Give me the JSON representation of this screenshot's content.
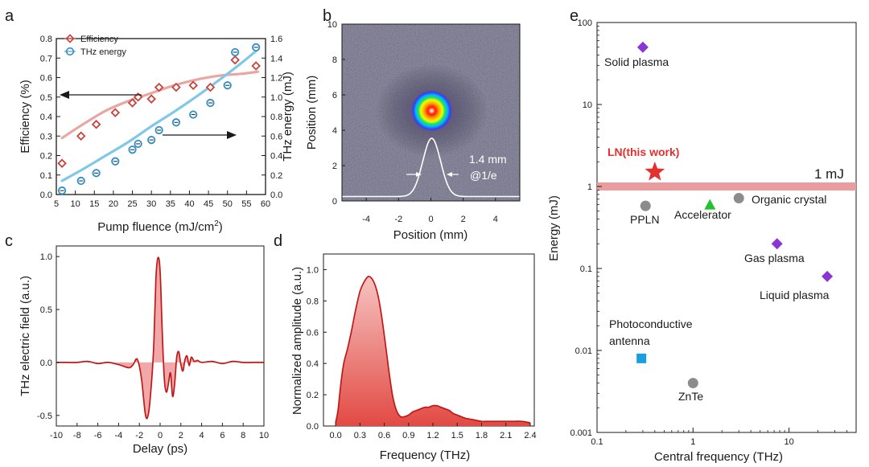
{
  "panels": {
    "a": {
      "label": "a",
      "chart_data": {
        "type": "scatter",
        "xlabel": "Pump fluence (mJ/cm",
        "xlabel_sup": "2",
        "xlabel_end": ")",
        "ylabel_left": "Efficiency (%)",
        "ylabel_right": "THz energy (mJ)",
        "xlim": [
          5,
          60
        ],
        "ylim_left": [
          0,
          0.8
        ],
        "ylim_right": [
          0,
          1.6
        ],
        "xticks": [
          "5",
          "10",
          "15",
          "20",
          "25",
          "30",
          "35",
          "40",
          "45",
          "50",
          "55",
          "60"
        ],
        "yticks_left": [
          "0.0",
          "0.1",
          "0.2",
          "0.3",
          "0.4",
          "0.5",
          "0.6",
          "0.7",
          "0.8"
        ],
        "yticks_right": [
          "0.0",
          "0.2",
          "0.4",
          "0.6",
          "0.8",
          "1.0",
          "1.2",
          "1.4",
          "1.6"
        ],
        "series": [
          {
            "name": "Efficiency",
            "axis": "left",
            "color": "#c8423c",
            "x": [
              6.5,
              11.5,
              15.5,
              20.5,
              25,
              26.5,
              30,
              32,
              36.5,
              41,
              45.5,
              52,
              57.5
            ],
            "y": [
              0.16,
              0.3,
              0.36,
              0.42,
              0.47,
              0.5,
              0.49,
              0.55,
              0.55,
              0.56,
              0.55,
              0.69,
              0.66
            ]
          },
          {
            "name": "THz energy",
            "axis": "right",
            "color": "#2f8fc4",
            "x": [
              6.5,
              11.5,
              15.5,
              20.5,
              25,
              26.5,
              30,
              32,
              36.5,
              41,
              45.5,
              50,
              52,
              57.5
            ],
            "y": [
              0.04,
              0.14,
              0.22,
              0.34,
              0.46,
              0.52,
              0.56,
              0.66,
              0.74,
              0.82,
              0.94,
              1.12,
              1.46,
              1.51
            ]
          }
        ],
        "fits": [
          {
            "name": "efficiency-fit",
            "axis": "left",
            "color": "#eaa7a2",
            "x": [
              6.5,
              12,
              18,
              24,
              30,
              36,
              42,
              48,
              54,
              58
            ],
            "y": [
              0.29,
              0.36,
              0.43,
              0.48,
              0.52,
              0.56,
              0.59,
              0.61,
              0.62,
              0.63
            ]
          },
          {
            "name": "energy-fit",
            "axis": "right",
            "color": "#80c8e6",
            "x": [
              6.5,
              12,
              18,
              24,
              30,
              36,
              42,
              48,
              54,
              58
            ],
            "y": [
              0.14,
              0.26,
              0.4,
              0.54,
              0.7,
              0.85,
              1.01,
              1.18,
              1.36,
              1.49
            ]
          }
        ]
      }
    },
    "b": {
      "label": "b",
      "chart_data": {
        "type": "heatmap",
        "xlabel": "Position (mm)",
        "ylabel": "Position (mm)",
        "xlim": [
          -5.5,
          5.5
        ],
        "ylim": [
          0,
          10
        ],
        "xticks": [
          "-4",
          "-2",
          "0",
          "2",
          "4"
        ],
        "yticks": [
          "0",
          "2",
          "4",
          "6",
          "8",
          "10"
        ],
        "beam_center": [
          0.05,
          5.1
        ],
        "profile_peak_mm": 3.55,
        "annotation_width": "1.4 mm",
        "annotation_level": "@1/e"
      }
    },
    "c": {
      "label": "c",
      "chart_data": {
        "type": "area",
        "xlabel": "Delay (ps)",
        "ylabel": "THz electric field (a.u.)",
        "xlim": [
          -10,
          10
        ],
        "ylim": [
          -0.6,
          1.1
        ],
        "xticks": [
          "-10",
          "-8",
          "-6",
          "-4",
          "-2",
          "0",
          "2",
          "4",
          "6",
          "8",
          "10"
        ],
        "yticks": [
          "-0.5",
          "0.0",
          "0.5",
          "1.0"
        ],
        "x": [
          -10,
          -9,
          -8,
          -7,
          -6,
          -5,
          -4,
          -3,
          -2.6,
          -2.2,
          -1.8,
          -1.4,
          -1.1,
          -0.8,
          -0.6,
          -0.4,
          -0.2,
          0,
          0.2,
          0.4,
          0.6,
          0.8,
          1.0,
          1.2,
          1.4,
          1.6,
          1.8,
          2.0,
          2.2,
          2.4,
          2.6,
          2.8,
          3.0,
          3.3,
          3.6,
          4,
          5,
          6,
          7,
          8,
          9,
          10
        ],
        "y": [
          0,
          0,
          0,
          0.01,
          -0.01,
          0,
          -0.02,
          -0.05,
          -0.02,
          0.03,
          -0.15,
          -0.5,
          -0.47,
          -0.15,
          0.2,
          0.8,
          0.99,
          0.86,
          0.3,
          -0.15,
          -0.28,
          -0.2,
          -0.1,
          -0.32,
          -0.2,
          0.05,
          0.1,
          -0.02,
          -0.08,
          0.03,
          0.06,
          -0.03,
          0.05,
          0.01,
          0.02,
          0,
          0.01,
          -0.01,
          0.01,
          0,
          0,
          0
        ]
      }
    },
    "d": {
      "label": "d",
      "chart_data": {
        "type": "area",
        "xlabel": "Frequency (THz)",
        "ylabel": "Normalized amplitude (a.u.)",
        "xlim": [
          -0.15,
          2.45
        ],
        "ylim": [
          0,
          1.1
        ],
        "xticks": [
          "0.0",
          "0.3",
          "0.6",
          "0.9",
          "1.2",
          "1.5",
          "1.8",
          "2.1",
          "2.4"
        ],
        "yticks": [
          "0.0",
          "0.2",
          "0.4",
          "0.6",
          "0.8",
          "1.0"
        ],
        "x": [
          0.0,
          0.03,
          0.06,
          0.1,
          0.15,
          0.2,
          0.25,
          0.3,
          0.35,
          0.4,
          0.45,
          0.5,
          0.55,
          0.6,
          0.65,
          0.7,
          0.75,
          0.8,
          0.85,
          0.9,
          0.95,
          1.0,
          1.05,
          1.1,
          1.15,
          1.2,
          1.25,
          1.3,
          1.35,
          1.4,
          1.45,
          1.5,
          1.6,
          1.7,
          1.8,
          1.9,
          2.0,
          2.1,
          2.2,
          2.3,
          2.4
        ],
        "y": [
          0.02,
          0.1,
          0.25,
          0.4,
          0.5,
          0.62,
          0.75,
          0.86,
          0.92,
          0.955,
          0.94,
          0.88,
          0.76,
          0.58,
          0.38,
          0.2,
          0.1,
          0.06,
          0.06,
          0.07,
          0.09,
          0.1,
          0.11,
          0.12,
          0.12,
          0.13,
          0.13,
          0.12,
          0.11,
          0.1,
          0.08,
          0.07,
          0.05,
          0.04,
          0.03,
          0.03,
          0.03,
          0.03,
          0.03,
          0.03,
          0.02
        ]
      }
    },
    "e": {
      "label": "e",
      "chart_data": {
        "type": "scatter",
        "scale": "log-log",
        "xlabel": "Central frequency (THz)",
        "ylabel": "Energy (mJ)",
        "xlim": [
          0.1,
          50
        ],
        "ylim": [
          0.001,
          100
        ],
        "xticks": [
          {
            "v": 0.1,
            "t": "0.1"
          },
          {
            "v": 1,
            "t": "1"
          },
          {
            "v": 10,
            "t": "10"
          }
        ],
        "yticks": [
          {
            "v": 0.001,
            "t": "0.001"
          },
          {
            "v": 0.01,
            "t": "0.01"
          },
          {
            "v": 0.1,
            "t": "0.1"
          },
          {
            "v": 1,
            "t": "1"
          },
          {
            "v": 10,
            "t": "10"
          },
          {
            "v": 100,
            "t": "100"
          }
        ],
        "reference_line": {
          "label": "1 mJ",
          "y": 1,
          "color": "#eb9c9e"
        },
        "points": [
          {
            "x": 0.3,
            "y": 50,
            "marker": "diamond",
            "color": "#8b35d6",
            "label": "Solid plasma"
          },
          {
            "x": 0.4,
            "y": 1.5,
            "marker": "star",
            "color": "#e53030",
            "label": "LN(this work)"
          },
          {
            "x": 0.32,
            "y": 0.58,
            "marker": "circle",
            "color": "#8c8c8c",
            "label": "PPLN"
          },
          {
            "x": 1.5,
            "y": 0.6,
            "marker": "triangle",
            "color": "#21c22c",
            "label": "Accelerator"
          },
          {
            "x": 3.0,
            "y": 0.72,
            "marker": "circle",
            "color": "#8c8c8c",
            "label": "Organic crystal"
          },
          {
            "x": 7.5,
            "y": 0.2,
            "marker": "diamond",
            "color": "#8b35d6",
            "label": "Gas plasma"
          },
          {
            "x": 25,
            "y": 0.08,
            "marker": "diamond",
            "color": "#8b35d6",
            "label": "Liquid plasma"
          },
          {
            "x": 0.29,
            "y": 0.008,
            "marker": "square",
            "color": "#1a9ee0",
            "label": "Photoconductive antenna"
          },
          {
            "x": 1.0,
            "y": 0.004,
            "marker": "circle",
            "color": "#8c8c8c",
            "label": "ZnTe"
          }
        ]
      }
    }
  }
}
